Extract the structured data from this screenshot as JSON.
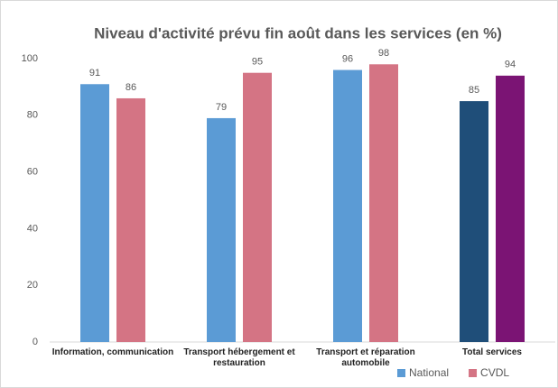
{
  "chart_data": {
    "type": "bar",
    "title": "Niveau d'activité prévu fin août dans les services (en %)",
    "categories": [
      "Information, communication",
      "Transport hébergement et restauration",
      "Transport et réparation automobile",
      "Total services"
    ],
    "series": [
      {
        "name": "National",
        "color": "#5b9bd5",
        "colors": [
          "#5b9bd5",
          "#5b9bd5",
          "#5b9bd5",
          "#1f4e79"
        ],
        "values": [
          91,
          79,
          96,
          85
        ]
      },
      {
        "name": "CVDL",
        "color": "#d47484",
        "colors": [
          "#d47484",
          "#d47484",
          "#d47484",
          "#7b1474"
        ],
        "values": [
          86,
          95,
          98,
          94
        ]
      }
    ],
    "ylim": [
      0,
      100
    ],
    "yticks": [
      0,
      20,
      40,
      60,
      80,
      100
    ],
    "grid": false,
    "legend": "bottom-right"
  }
}
